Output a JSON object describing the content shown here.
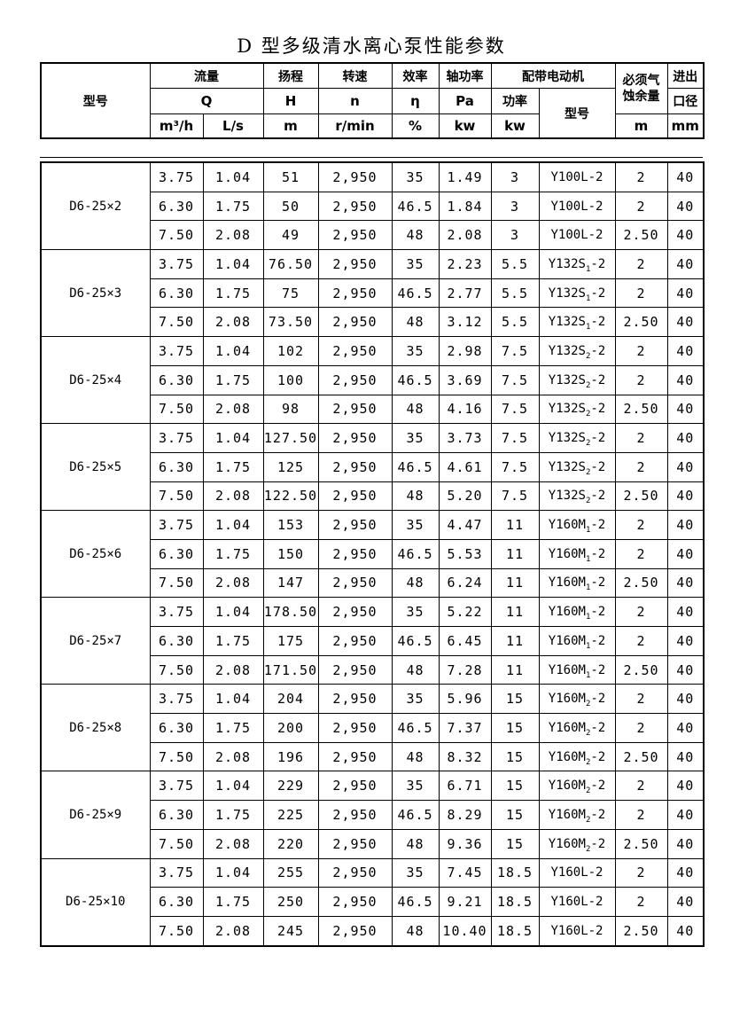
{
  "page": {
    "title": "D 型多级清水离心泵性能参数"
  },
  "colors": {
    "text": "#000000",
    "background": "#ffffff",
    "border": "#000000"
  },
  "table": {
    "header": {
      "pump_model": "型号",
      "flow": "流量",
      "flow_symbol": "Q",
      "head": "扬程",
      "head_symbol": "H",
      "speed": "转速",
      "speed_symbol": "n",
      "efficiency": "效率",
      "efficiency_symbol": "η",
      "shaft_power": "轴功率",
      "shaft_power_symbol": "Pa",
      "motor": "配带电动机",
      "motor_power": "功率",
      "motor_model": "型号",
      "npsh": "必须气蚀余量",
      "inlet_outlet_top": "进出",
      "inlet_outlet_bottom": "口径",
      "units": {
        "flow_m3h": "m³/h",
        "flow_ls": "L/s",
        "head": "m",
        "speed": "r/min",
        "efficiency": "%",
        "shaft_power": "kw",
        "motor_power": "kw",
        "npsh": "m",
        "inlet_outlet": "mm"
      }
    },
    "groups": [
      {
        "model": "D6-25×2",
        "rows": [
          [
            "3.75",
            "1.04",
            "51",
            "2,950",
            "35",
            "1.49",
            "3",
            "Y100L-2",
            "2",
            "40"
          ],
          [
            "6.30",
            "1.75",
            "50",
            "2,950",
            "46.5",
            "1.84",
            "3",
            "Y100L-2",
            "2",
            "40"
          ],
          [
            "7.50",
            "2.08",
            "49",
            "2,950",
            "48",
            "2.08",
            "3",
            "Y100L-2",
            "2.50",
            "40"
          ]
        ]
      },
      {
        "model": "D6-25×3",
        "rows": [
          [
            "3.75",
            "1.04",
            "76.50",
            "2,950",
            "35",
            "2.23",
            "5.5",
            "Y132S₁-2",
            "2",
            "40"
          ],
          [
            "6.30",
            "1.75",
            "75",
            "2,950",
            "46.5",
            "2.77",
            "5.5",
            "Y132S₁-2",
            "2",
            "40"
          ],
          [
            "7.50",
            "2.08",
            "73.50",
            "2,950",
            "48",
            "3.12",
            "5.5",
            "Y132S₁-2",
            "2.50",
            "40"
          ]
        ]
      },
      {
        "model": "D6-25×4",
        "rows": [
          [
            "3.75",
            "1.04",
            "102",
            "2,950",
            "35",
            "2.98",
            "7.5",
            "Y132S₂-2",
            "2",
            "40"
          ],
          [
            "6.30",
            "1.75",
            "100",
            "2,950",
            "46.5",
            "3.69",
            "7.5",
            "Y132S₂-2",
            "2",
            "40"
          ],
          [
            "7.50",
            "2.08",
            "98",
            "2,950",
            "48",
            "4.16",
            "7.5",
            "Y132S₂-2",
            "2.50",
            "40"
          ]
        ]
      },
      {
        "model": "D6-25×5",
        "rows": [
          [
            "3.75",
            "1.04",
            "127.50",
            "2,950",
            "35",
            "3.73",
            "7.5",
            "Y132S₂-2",
            "2",
            "40"
          ],
          [
            "6.30",
            "1.75",
            "125",
            "2,950",
            "46.5",
            "4.61",
            "7.5",
            "Y132S₂-2",
            "2",
            "40"
          ],
          [
            "7.50",
            "2.08",
            "122.50",
            "2,950",
            "48",
            "5.20",
            "7.5",
            "Y132S₂-2",
            "2.50",
            "40"
          ]
        ]
      },
      {
        "model": "D6-25×6",
        "rows": [
          [
            "3.75",
            "1.04",
            "153",
            "2,950",
            "35",
            "4.47",
            "11",
            "Y160M₁-2",
            "2",
            "40"
          ],
          [
            "6.30",
            "1.75",
            "150",
            "2,950",
            "46.5",
            "5.53",
            "11",
            "Y160M₁-2",
            "2",
            "40"
          ],
          [
            "7.50",
            "2.08",
            "147",
            "2,950",
            "48",
            "6.24",
            "11",
            "Y160M₁-2",
            "2.50",
            "40"
          ]
        ]
      },
      {
        "model": "D6-25×7",
        "rows": [
          [
            "3.75",
            "1.04",
            "178.50",
            "2,950",
            "35",
            "5.22",
            "11",
            "Y160M₁-2",
            "2",
            "40"
          ],
          [
            "6.30",
            "1.75",
            "175",
            "2,950",
            "46.5",
            "6.45",
            "11",
            "Y160M₁-2",
            "2",
            "40"
          ],
          [
            "7.50",
            "2.08",
            "171.50",
            "2,950",
            "48",
            "7.28",
            "11",
            "Y160M₁-2",
            "2.50",
            "40"
          ]
        ]
      },
      {
        "model": "D6-25×8",
        "rows": [
          [
            "3.75",
            "1.04",
            "204",
            "2,950",
            "35",
            "5.96",
            "15",
            "Y160M₂-2",
            "2",
            "40"
          ],
          [
            "6.30",
            "1.75",
            "200",
            "2,950",
            "46.5",
            "7.37",
            "15",
            "Y160M₂-2",
            "2",
            "40"
          ],
          [
            "7.50",
            "2.08",
            "196",
            "2,950",
            "48",
            "8.32",
            "15",
            "Y160M₂-2",
            "2.50",
            "40"
          ]
        ]
      },
      {
        "model": "D6-25×9",
        "rows": [
          [
            "3.75",
            "1.04",
            "229",
            "2,950",
            "35",
            "6.71",
            "15",
            "Y160M₂-2",
            "2",
            "40"
          ],
          [
            "6.30",
            "1.75",
            "225",
            "2,950",
            "46.5",
            "8.29",
            "15",
            "Y160M₂-2",
            "2",
            "40"
          ],
          [
            "7.50",
            "2.08",
            "220",
            "2,950",
            "48",
            "9.36",
            "15",
            "Y160M₂-2",
            "2.50",
            "40"
          ]
        ]
      },
      {
        "model": "D6-25×10",
        "rows": [
          [
            "3.75",
            "1.04",
            "255",
            "2,950",
            "35",
            "7.45",
            "18.5",
            "Y160L-2",
            "2",
            "40"
          ],
          [
            "6.30",
            "1.75",
            "250",
            "2,950",
            "46.5",
            "9.21",
            "18.5",
            "Y160L-2",
            "2",
            "40"
          ],
          [
            "7.50",
            "2.08",
            "245",
            "2,950",
            "48",
            "10.40",
            "18.5",
            "Y160L-2",
            "2.50",
            "40"
          ]
        ]
      }
    ]
  }
}
